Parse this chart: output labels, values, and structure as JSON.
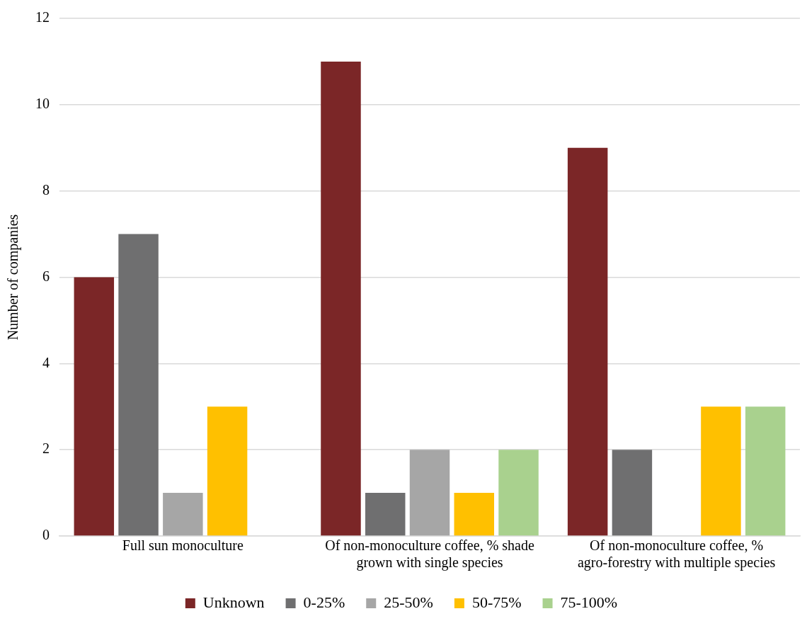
{
  "chart_data": {
    "type": "bar",
    "ylabel": "Number of companies",
    "categories": [
      "Full sun monoculture",
      "Of non-monoculture coffee, % shade grown with single species",
      "Of non-monoculture coffee, % agro-forestry with multiple species"
    ],
    "series": [
      {
        "name": "Unknown",
        "color": "#7b2627",
        "values": [
          6,
          11,
          9
        ]
      },
      {
        "name": "0-25%",
        "color": "#6f6f70",
        "values": [
          7,
          1,
          2
        ]
      },
      {
        "name": "25-50%",
        "color": "#a6a6a6",
        "values": [
          1,
          2,
          0
        ]
      },
      {
        "name": "50-75%",
        "color": "#ffc000",
        "values": [
          3,
          1,
          3
        ]
      },
      {
        "name": "75-100%",
        "color": "#a9d18e",
        "values": [
          0,
          2,
          3
        ]
      }
    ],
    "ylim": [
      0,
      12
    ],
    "yticks": [
      0,
      2,
      4,
      6,
      8,
      10,
      12
    ],
    "grid": "y",
    "legend": "bottom"
  }
}
